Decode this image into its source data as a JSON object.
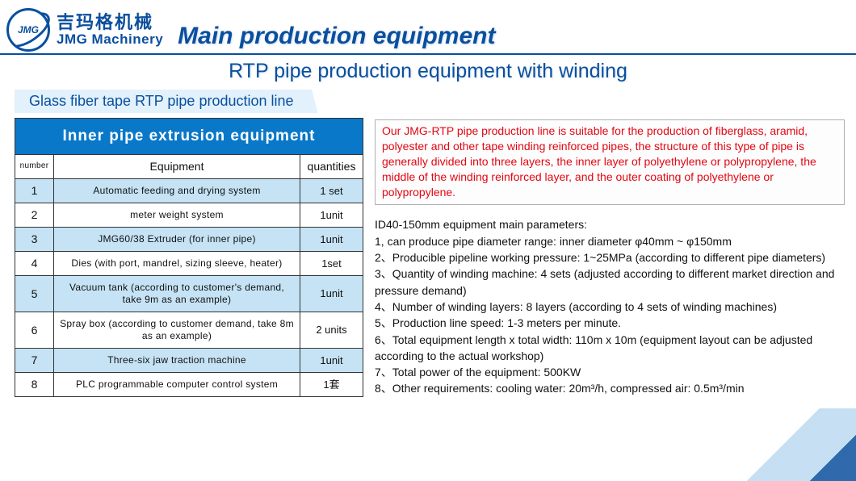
{
  "logo": {
    "initials": "JMG",
    "chinese": "吉玛格机械",
    "english": "JMG Machinery"
  },
  "titles": {
    "main": "Main production equipment",
    "sub": "RTP pipe production equipment with winding",
    "section": "Glass fiber tape RTP pipe production line"
  },
  "colors": {
    "brand_blue": "#0a4f9e",
    "header_blue": "#0a78c8",
    "row_alt": "#c5e3f5",
    "section_bg": "#e2f1fb",
    "intro_red": "#e30613",
    "body_text": "#111111",
    "border": "#333333",
    "intro_border": "#b0b0b0"
  },
  "table": {
    "title": "Inner pipe extrusion equipment",
    "columns": {
      "num": "number",
      "name": "Equipment",
      "qty": "quantities"
    },
    "rows": [
      {
        "n": "1",
        "name": "Automatic feeding and drying system",
        "qty": "1 set"
      },
      {
        "n": "2",
        "name": "meter weight system",
        "qty": "1unit"
      },
      {
        "n": "3",
        "name": "JMG60/38 Extruder (for inner pipe)",
        "qty": "1unit"
      },
      {
        "n": "4",
        "name": "Dies (with port, mandrel, sizing sleeve, heater)",
        "qty": "1set"
      },
      {
        "n": "5",
        "name": "Vacuum tank (according to customer's demand, take 9m as an example)",
        "qty": "1unit"
      },
      {
        "n": "6",
        "name": "Spray box (according to customer demand, take 8m as an example)",
        "qty": "2 units"
      },
      {
        "n": "7",
        "name": "Three-six jaw traction machine",
        "qty": "1unit"
      },
      {
        "n": "8",
        "name": "PLC programmable computer control system",
        "qty": "1套"
      }
    ]
  },
  "intro": "Our JMG-RTP pipe production line is suitable for the production of fiberglass, aramid, polyester and other tape winding reinforced pipes, the structure of this type of pipe is generally divided into three layers, the inner layer of polyethylene or polypropylene, the middle of the winding reinforced layer, and the outer coating of polyethylene or polypropylene.",
  "params_heading": "ID40-150mm equipment main parameters:",
  "params": [
    "1, can produce pipe diameter range: inner diameter φ40mm ~ φ150mm",
    "2、Producible pipeline working pressure: 1~25MPa (according to different pipe diameters)",
    "3、Quantity of winding machine: 4 sets (adjusted according to different market direction and pressure demand)",
    "4、Number of winding layers: 8 layers (according to 4 sets of winding machines)",
    "5、Production line speed: 1-3 meters per minute.",
    "6、Total equipment length x total width: 110m x 10m (equipment layout can be adjusted according to the actual workshop)",
    "7、Total power of the equipment: 500KW",
    "8、Other requirements: cooling water: 20m³/h, compressed air: 0.5m³/min"
  ]
}
